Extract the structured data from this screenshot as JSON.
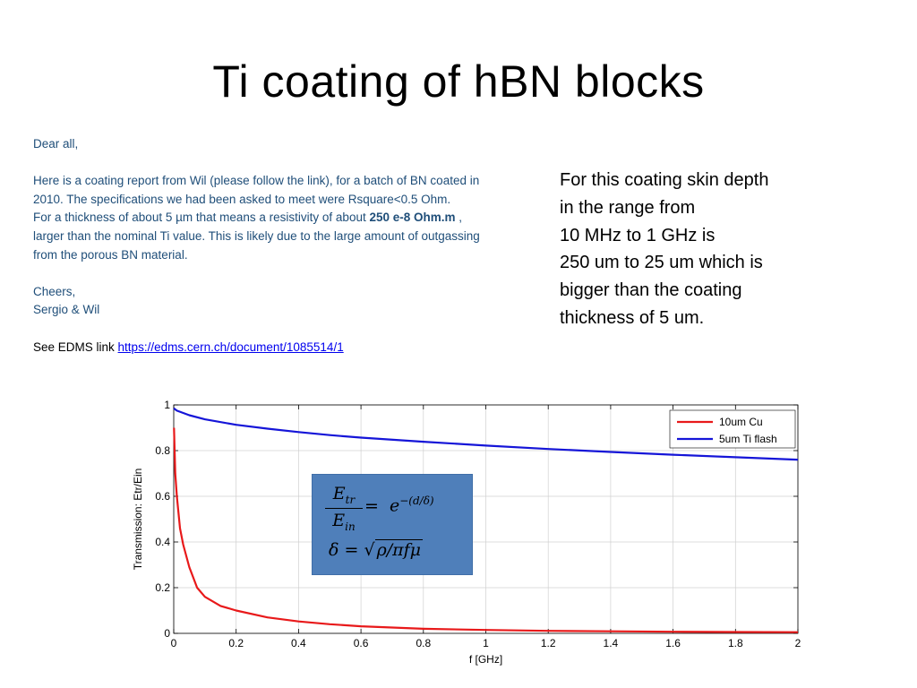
{
  "slide": {
    "title": "Ti coating of hBN blocks"
  },
  "email": {
    "greeting": "Dear all,",
    "p1": "Here is a coating report from Wil (please follow the link), for a batch of BN coated in 2010. The specifications we had been asked to meet were Rsquare<0.5 Ohm.",
    "p2_pre": "For a thickness of about 5 µm that means a resistivity of about ",
    "p2_bold": "250 e-8 Ohm.m",
    "p2_post": " , larger than the nominal Ti value. This is likely due to the large amount of outgassing from the porous BN material.",
    "cheers": "Cheers,",
    "signature": "Sergio & Wil",
    "edms_label": "See EDMS link ",
    "edms_url": "https://edms.cern.ch/document/1085514/1"
  },
  "note": {
    "lines": [
      "For this coating skin depth",
      "in the range from",
      "10 MHz to 1 GHz is",
      "250 um to 25 um which is",
      "bigger than the coating",
      "thickness of 5 um."
    ]
  },
  "formula": {
    "num_base": "E",
    "num_sub": "tr",
    "den_base": "E",
    "den_sub": "in",
    "eq": "=",
    "rhs_base": "e",
    "rhs_exp": "−(d/δ)",
    "line2_lhs": "δ =",
    "line2_rad": "ρ/πfμ"
  },
  "chart_data": {
    "type": "line",
    "title": "",
    "xlabel": "f [GHz]",
    "ylabel": "Transmission: Etr/Ein",
    "xlim": [
      0,
      2
    ],
    "ylim": [
      0,
      1
    ],
    "xticks": [
      "0",
      "0.2",
      "0.4",
      "0.6",
      "0.8",
      "1",
      "1.2",
      "1.4",
      "1.6",
      "1.8",
      "2"
    ],
    "yticks": [
      "0",
      "0.2",
      "0.4",
      "0.6",
      "0.8",
      "1"
    ],
    "grid": true,
    "legend_position": "top-right",
    "series": [
      {
        "name": "10um Cu",
        "color": "#e8191a",
        "x": [
          0.001,
          0.005,
          0.01,
          0.02,
          0.03,
          0.05,
          0.075,
          0.1,
          0.15,
          0.2,
          0.3,
          0.4,
          0.5,
          0.6,
          0.8,
          1.0,
          1.2,
          1.4,
          1.6,
          1.8,
          2.0
        ],
        "y": [
          0.9,
          0.7,
          0.6,
          0.46,
          0.39,
          0.29,
          0.2,
          0.16,
          0.12,
          0.1,
          0.07,
          0.052,
          0.04,
          0.031,
          0.02,
          0.015,
          0.011,
          0.009,
          0.007,
          0.006,
          0.005
        ]
      },
      {
        "name": "5um Ti flash",
        "color": "#1515d8",
        "x": [
          0.0,
          0.01,
          0.05,
          0.1,
          0.2,
          0.3,
          0.4,
          0.5,
          0.6,
          0.8,
          1.0,
          1.2,
          1.4,
          1.6,
          1.8,
          2.0
        ],
        "y": [
          0.985,
          0.975,
          0.955,
          0.937,
          0.913,
          0.896,
          0.881,
          0.868,
          0.857,
          0.839,
          0.822,
          0.807,
          0.794,
          0.782,
          0.771,
          0.76
        ]
      }
    ]
  }
}
